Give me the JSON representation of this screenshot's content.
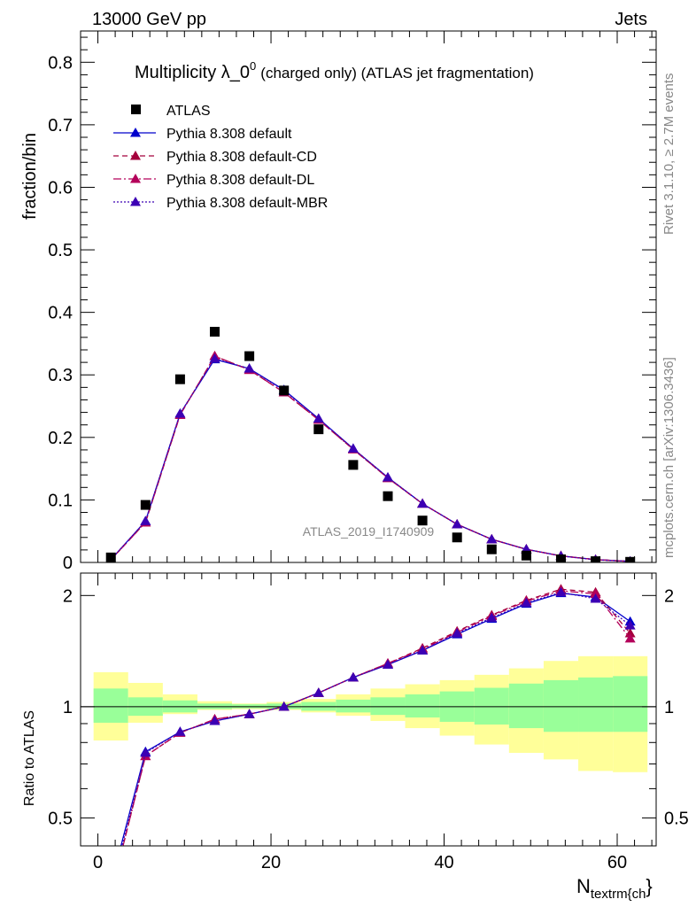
{
  "header": {
    "left": "13000 GeV pp",
    "right": "Jets"
  },
  "side_labels": {
    "rivet": "Rivet 3.1.10, ≥ 2.7M events",
    "mcplots": "mcplots.cern.ch [arXiv:1306.3436]"
  },
  "colors": {
    "atlas": "#000000",
    "default": "#0000cc",
    "cd": "#a5003c",
    "dl": "#b4005a",
    "mbr": "#3c00b4",
    "band_outer": "#ffff99",
    "band_inner": "#99ff99"
  },
  "chart_data": {
    "type": "line",
    "title_main": "Multiplicity λ_0",
    "title_sup": "0",
    "title_rest": "(charged only) (ATLAS jet fragmentation)",
    "watermark": "ATLAS_2019_I1740909",
    "ylabel": "fraction/bin",
    "xlabel_main": "N",
    "xlabel_sub": "textrm{ch",
    "xlabel_end": "}",
    "ratio_ylabel": "Ratio to ATLAS",
    "xlim": [
      -2,
      64.5
    ],
    "ylim": [
      0,
      0.85
    ],
    "ratio_ylim": [
      0.42,
      2.3
    ],
    "x_ticks": [
      "0",
      "20",
      "40",
      "60"
    ],
    "y_ticks": [
      "0",
      "0.1",
      "0.2",
      "0.3",
      "0.4",
      "0.5",
      "0.6",
      "0.7",
      "0.8"
    ],
    "ratio_ticks": [
      "0.5",
      "1",
      "2"
    ],
    "x": [
      1.5,
      5.5,
      9.5,
      13.5,
      17.5,
      21.5,
      25.5,
      29.5,
      33.5,
      37.5,
      41.5,
      45.5,
      49.5,
      53.5,
      57.5,
      61.5
    ],
    "bin_edges": [
      -0.5,
      3.5,
      7.5,
      11.5,
      15.5,
      19.5,
      23.5,
      27.5,
      31.5,
      35.5,
      39.5,
      43.5,
      47.5,
      51.5,
      55.5,
      59.5,
      63.5
    ],
    "atlas": [
      0.008,
      0.092,
      0.293,
      0.369,
      0.33,
      0.275,
      0.213,
      0.156,
      0.106,
      0.067,
      0.04,
      0.021,
      0.011,
      0.005,
      0.002,
      0.001
    ],
    "series": [
      {
        "name": "Pythia 8.308 default",
        "key": "default",
        "dash": "",
        "values": [
          0.0045,
          0.066,
          0.238,
          0.325,
          0.31,
          0.276,
          0.23,
          0.182,
          0.136,
          0.094,
          0.061,
          0.037,
          0.021,
          0.0105,
          0.0045,
          0.0017
        ]
      },
      {
        "name": "Pythia 8.308 default-CD",
        "key": "cd",
        "dash": "6,4",
        "values": [
          0.0042,
          0.064,
          0.236,
          0.33,
          0.308,
          0.272,
          0.228,
          0.181,
          0.135,
          0.094,
          0.061,
          0.037,
          0.021,
          0.0105,
          0.0046,
          0.0016
        ]
      },
      {
        "name": "Pythia 8.308 default-DL",
        "key": "dl",
        "dash": "9,3,2,3",
        "values": [
          0.0042,
          0.064,
          0.236,
          0.33,
          0.308,
          0.272,
          0.228,
          0.181,
          0.135,
          0.094,
          0.061,
          0.037,
          0.021,
          0.0104,
          0.0045,
          0.0016
        ]
      },
      {
        "name": "Pythia 8.308 default-MBR",
        "key": "mbr",
        "dash": "2,2",
        "values": [
          0.0044,
          0.066,
          0.238,
          0.326,
          0.31,
          0.275,
          0.23,
          0.182,
          0.136,
          0.094,
          0.061,
          0.037,
          0.021,
          0.0103,
          0.0043,
          0.0017
        ]
      }
    ],
    "legend": [
      "ATLAS"
    ],
    "ratio_series": {
      "default": [
        0.33,
        0.755,
        0.855,
        0.915,
        0.955,
        1.0,
        1.09,
        1.2,
        1.3,
        1.42,
        1.57,
        1.73,
        1.9,
        2.03,
        1.98,
        1.7
      ],
      "cd": [
        0.31,
        0.735,
        0.85,
        0.925,
        0.955,
        1.0,
        1.09,
        1.2,
        1.31,
        1.44,
        1.6,
        1.77,
        1.94,
        2.08,
        2.04,
        1.58
      ],
      "dl": [
        0.31,
        0.735,
        0.85,
        0.925,
        0.955,
        1.0,
        1.09,
        1.2,
        1.31,
        1.43,
        1.59,
        1.76,
        1.93,
        2.06,
        2.02,
        1.53
      ],
      "mbr": [
        0.32,
        0.75,
        0.855,
        0.915,
        0.955,
        1.0,
        1.09,
        1.2,
        1.3,
        1.42,
        1.58,
        1.74,
        1.91,
        2.04,
        1.96,
        1.66
      ]
    },
    "band_inner": {
      "lo": [
        0.905,
        0.945,
        0.965,
        0.985,
        0.99,
        0.985,
        0.975,
        0.965,
        0.95,
        0.935,
        0.91,
        0.895,
        0.875,
        0.855,
        0.855,
        0.855
      ],
      "hi": [
        1.12,
        1.06,
        1.04,
        1.02,
        1.015,
        1.02,
        1.03,
        1.045,
        1.06,
        1.08,
        1.1,
        1.125,
        1.155,
        1.18,
        1.2,
        1.21
      ]
    },
    "band_outer": {
      "lo": [
        0.81,
        0.905,
        0.955,
        0.98,
        0.985,
        0.98,
        0.965,
        0.945,
        0.915,
        0.875,
        0.835,
        0.79,
        0.75,
        0.72,
        0.67,
        0.665
      ],
      "hi": [
        1.24,
        1.16,
        1.08,
        1.035,
        1.02,
        1.03,
        1.05,
        1.08,
        1.12,
        1.15,
        1.18,
        1.22,
        1.27,
        1.33,
        1.37,
        1.37
      ]
    }
  }
}
